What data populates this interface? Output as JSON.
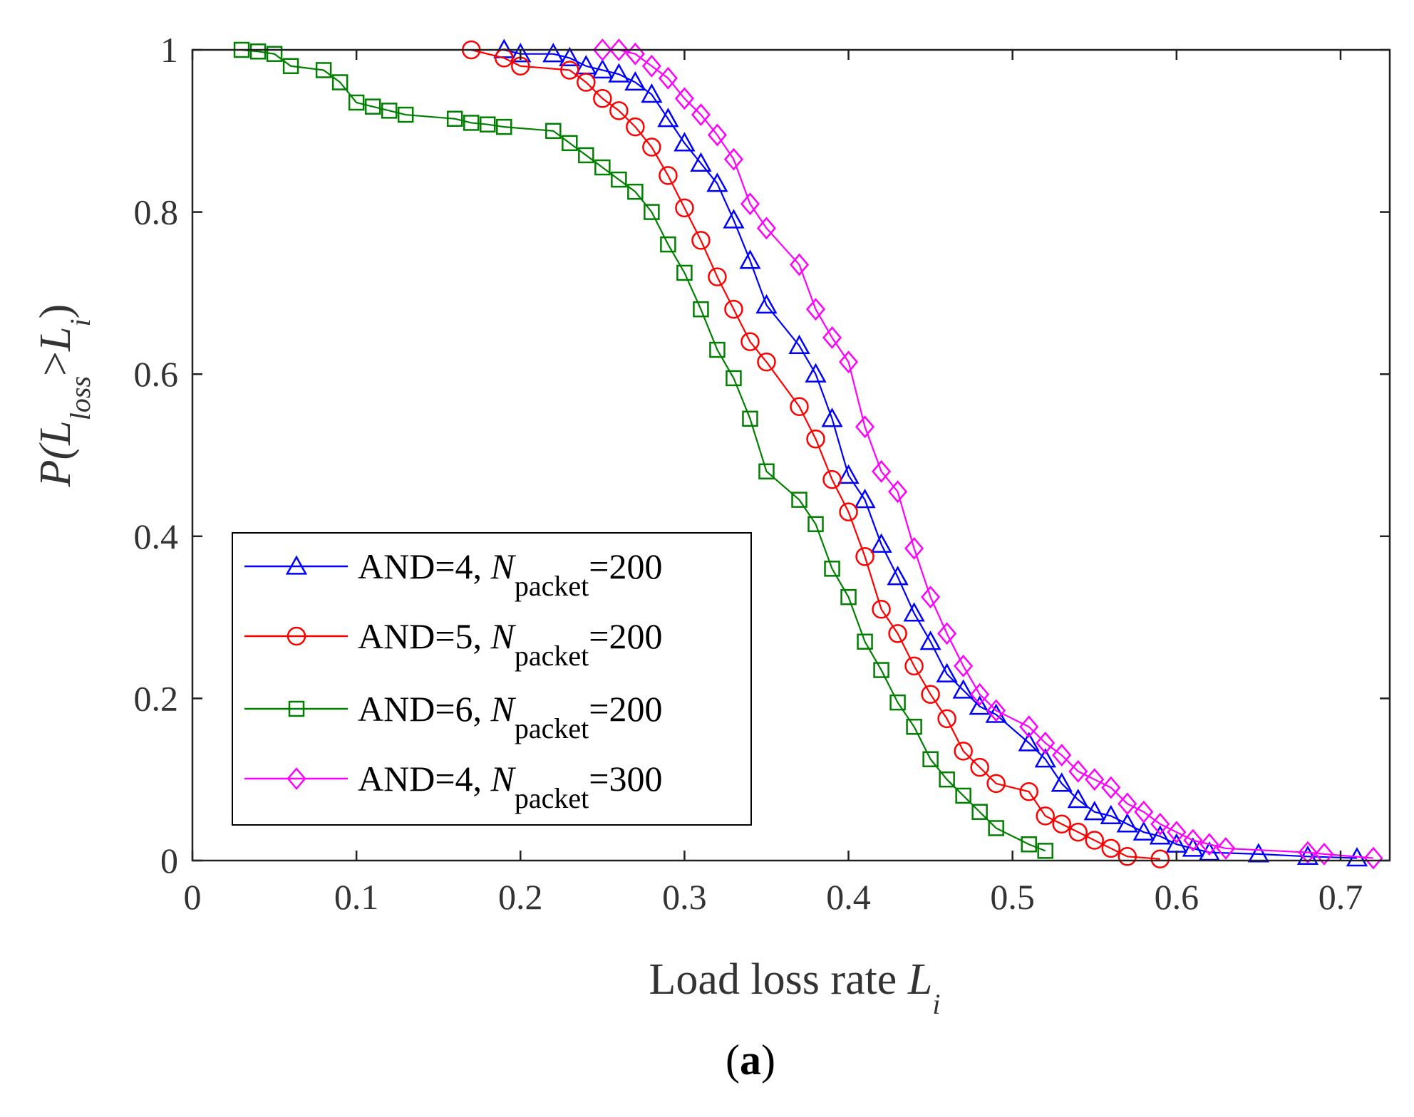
{
  "chart_data": {
    "type": "line",
    "title": "",
    "caption": "(a)",
    "caption_prefix": "(",
    "caption_letter": "a",
    "caption_suffix": ")",
    "xlabel": "Load loss rate",
    "xlabel_var": "L",
    "xlabel_sub": "i",
    "ylabel": "P(Lloss>Li)",
    "ylabel_parts": {
      "p": "P(",
      "L1": "L",
      "sub1": "loss",
      "gt": ">",
      "L2": "L",
      "sub2": "i",
      "close": ")"
    },
    "xlim": [
      0,
      0.73
    ],
    "ylim": [
      0,
      1
    ],
    "xticks": [
      0,
      0.1,
      0.2,
      0.3,
      0.4,
      0.5,
      0.6,
      0.7
    ],
    "xtick_labels": [
      "0",
      "0.1",
      "0.2",
      "0.3",
      "0.4",
      "0.5",
      "0.6",
      "0.7"
    ],
    "yticks": [
      0,
      0.2,
      0.4,
      0.6,
      0.8,
      1
    ],
    "ytick_labels": [
      "0",
      "0.2",
      "0.4",
      "0.6",
      "0.8",
      "1"
    ],
    "legend_position": "bottom-left",
    "series": [
      {
        "name": "AND=4, Npacket=200",
        "label_prefix": "AND=4, ",
        "label_var": "N",
        "label_sub": "packet",
        "label_suffix": "=200",
        "color": "#0000ff",
        "marker": "triangle",
        "x": [
          0.19,
          0.2,
          0.22,
          0.23,
          0.24,
          0.25,
          0.26,
          0.27,
          0.28,
          0.29,
          0.3,
          0.31,
          0.32,
          0.33,
          0.34,
          0.35,
          0.37,
          0.38,
          0.39,
          0.4,
          0.41,
          0.42,
          0.43,
          0.44,
          0.45,
          0.46,
          0.47,
          0.48,
          0.49,
          0.51,
          0.52,
          0.53,
          0.54,
          0.55,
          0.56,
          0.57,
          0.58,
          0.59,
          0.6,
          0.61,
          0.62,
          0.65,
          0.68,
          0.71
        ],
        "y": [
          1.0,
          0.995,
          0.995,
          0.99,
          0.98,
          0.975,
          0.97,
          0.96,
          0.945,
          0.915,
          0.885,
          0.86,
          0.835,
          0.79,
          0.74,
          0.685,
          0.635,
          0.6,
          0.545,
          0.475,
          0.445,
          0.39,
          0.35,
          0.305,
          0.27,
          0.23,
          0.21,
          0.19,
          0.18,
          0.145,
          0.125,
          0.095,
          0.075,
          0.06,
          0.055,
          0.045,
          0.035,
          0.03,
          0.02,
          0.015,
          0.01,
          0.008,
          0.005,
          0.003
        ]
      },
      {
        "name": "AND=5, Npacket=200",
        "label_prefix": "AND=5, ",
        "label_var": "N",
        "label_sub": "packet",
        "label_suffix": "=200",
        "color": "#ff0000",
        "marker": "circle",
        "x": [
          0.17,
          0.19,
          0.2,
          0.23,
          0.24,
          0.25,
          0.26,
          0.27,
          0.28,
          0.29,
          0.3,
          0.31,
          0.32,
          0.33,
          0.34,
          0.35,
          0.37,
          0.38,
          0.39,
          0.4,
          0.41,
          0.42,
          0.43,
          0.44,
          0.45,
          0.46,
          0.47,
          0.48,
          0.49,
          0.51,
          0.52,
          0.53,
          0.54,
          0.55,
          0.56,
          0.57,
          0.59
        ],
        "y": [
          1.0,
          0.99,
          0.98,
          0.975,
          0.96,
          0.94,
          0.925,
          0.905,
          0.88,
          0.845,
          0.805,
          0.765,
          0.72,
          0.68,
          0.64,
          0.615,
          0.56,
          0.52,
          0.47,
          0.43,
          0.375,
          0.31,
          0.28,
          0.24,
          0.205,
          0.175,
          0.135,
          0.115,
          0.095,
          0.085,
          0.055,
          0.045,
          0.035,
          0.025,
          0.015,
          0.005,
          0.002
        ]
      },
      {
        "name": "AND=6, Npacket=200",
        "label_prefix": "AND=6, ",
        "label_var": "N",
        "label_sub": "packet",
        "label_suffix": "=200",
        "color": "#007f00",
        "marker": "square",
        "x": [
          0.03,
          0.04,
          0.05,
          0.06,
          0.08,
          0.09,
          0.1,
          0.11,
          0.12,
          0.13,
          0.16,
          0.17,
          0.18,
          0.19,
          0.22,
          0.23,
          0.24,
          0.25,
          0.26,
          0.27,
          0.28,
          0.29,
          0.3,
          0.31,
          0.32,
          0.33,
          0.34,
          0.35,
          0.37,
          0.38,
          0.39,
          0.4,
          0.41,
          0.42,
          0.43,
          0.44,
          0.45,
          0.46,
          0.47,
          0.48,
          0.49,
          0.51,
          0.52
        ],
        "y": [
          1.0,
          0.998,
          0.995,
          0.98,
          0.975,
          0.96,
          0.935,
          0.93,
          0.925,
          0.92,
          0.915,
          0.91,
          0.908,
          0.905,
          0.9,
          0.885,
          0.87,
          0.855,
          0.84,
          0.825,
          0.8,
          0.76,
          0.725,
          0.68,
          0.63,
          0.595,
          0.545,
          0.48,
          0.445,
          0.415,
          0.36,
          0.325,
          0.27,
          0.235,
          0.195,
          0.165,
          0.125,
          0.1,
          0.08,
          0.06,
          0.04,
          0.02,
          0.012
        ]
      },
      {
        "name": "AND=4, Npacket=300",
        "label_prefix": "AND=4, ",
        "label_var": "N",
        "label_sub": "packet",
        "label_suffix": "=300",
        "color": "#ff00ff",
        "marker": "diamond",
        "x": [
          0.25,
          0.26,
          0.27,
          0.28,
          0.29,
          0.3,
          0.31,
          0.32,
          0.33,
          0.34,
          0.35,
          0.37,
          0.38,
          0.39,
          0.4,
          0.41,
          0.42,
          0.43,
          0.44,
          0.45,
          0.46,
          0.47,
          0.48,
          0.49,
          0.51,
          0.52,
          0.53,
          0.54,
          0.55,
          0.56,
          0.57,
          0.58,
          0.59,
          0.6,
          0.61,
          0.62,
          0.63,
          0.68,
          0.69,
          0.72
        ],
        "y": [
          1.0,
          1.0,
          0.995,
          0.98,
          0.965,
          0.94,
          0.92,
          0.895,
          0.865,
          0.81,
          0.78,
          0.735,
          0.68,
          0.645,
          0.615,
          0.535,
          0.48,
          0.455,
          0.385,
          0.325,
          0.28,
          0.24,
          0.205,
          0.185,
          0.165,
          0.145,
          0.13,
          0.11,
          0.1,
          0.09,
          0.07,
          0.06,
          0.045,
          0.035,
          0.025,
          0.02,
          0.015,
          0.01,
          0.008,
          0.003
        ]
      }
    ]
  }
}
